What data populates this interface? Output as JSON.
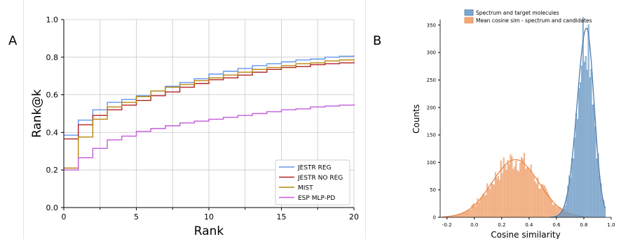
{
  "panels": {
    "a_label": "A",
    "b_label": "B"
  },
  "chart_data": [
    {
      "type": "line",
      "panel": "A",
      "xlabel": "Rank",
      "ylabel": "Rank@k",
      "xlim": [
        0,
        20
      ],
      "ylim": [
        0.0,
        1.0
      ],
      "xticks": [
        "0",
        "5",
        "10",
        "15",
        "20"
      ],
      "yticks": [
        "0.0",
        "0.2",
        "0.4",
        "0.6",
        "0.8",
        "1.0"
      ],
      "grid": true,
      "step": true,
      "legend_position": "lower-right",
      "x": [
        0,
        1,
        2,
        3,
        4,
        5,
        6,
        7,
        8,
        9,
        10,
        11,
        12,
        13,
        14,
        15,
        16,
        17,
        18,
        19,
        20
      ],
      "series": [
        {
          "name": "JESTR REG",
          "color": "#6495ED",
          "values": [
            0.385,
            0.465,
            0.52,
            0.56,
            0.575,
            0.595,
            0.62,
            0.645,
            0.665,
            0.685,
            0.71,
            0.725,
            0.74,
            0.755,
            0.765,
            0.775,
            0.785,
            0.79,
            0.8,
            0.805,
            0.81
          ]
        },
        {
          "name": "JESTR NO REG",
          "color": "#B22222",
          "values": [
            0.365,
            0.44,
            0.49,
            0.52,
            0.545,
            0.57,
            0.595,
            0.615,
            0.64,
            0.66,
            0.68,
            0.69,
            0.705,
            0.72,
            0.735,
            0.745,
            0.75,
            0.76,
            0.765,
            0.77,
            0.775
          ]
        },
        {
          "name": "MIST",
          "color": "#B8860B",
          "values": [
            0.21,
            0.375,
            0.47,
            0.535,
            0.56,
            0.59,
            0.62,
            0.64,
            0.655,
            0.675,
            0.69,
            0.705,
            0.72,
            0.735,
            0.745,
            0.755,
            0.765,
            0.77,
            0.78,
            0.785,
            0.79
          ]
        },
        {
          "name": "ESP MLP-PD",
          "color": "#C25BDB",
          "values": [
            0.2,
            0.265,
            0.315,
            0.36,
            0.38,
            0.405,
            0.42,
            0.435,
            0.45,
            0.46,
            0.47,
            0.48,
            0.49,
            0.5,
            0.51,
            0.52,
            0.525,
            0.535,
            0.54,
            0.545,
            0.55
          ]
        }
      ]
    },
    {
      "type": "histogram",
      "panel": "B",
      "xlabel": "Cosine similarity",
      "ylabel": "Counts",
      "xlim": [
        -0.25,
        1.0
      ],
      "ylim": [
        0,
        360
      ],
      "xticks": [
        "-0.2",
        "0.0",
        "0.2",
        "0.4",
        "0.6",
        "0.8",
        "1.0"
      ],
      "yticks": [
        "0",
        "50",
        "100",
        "150",
        "200",
        "250",
        "300",
        "350"
      ],
      "bin_width": 0.01,
      "kde_overlay": true,
      "legend_position": "top-right",
      "series": [
        {
          "name": "Spectrum and target molecules",
          "color": "#4E7FAE",
          "fill": "#7AA6CF",
          "center": 0.82,
          "spread": 0.055,
          "peak": 345
        },
        {
          "name": "Mean cosine sim - spectrum and candidates",
          "color": "#E8884A",
          "fill": "#F2A97A",
          "center": 0.3,
          "spread": 0.17,
          "peak": 105
        }
      ]
    }
  ]
}
